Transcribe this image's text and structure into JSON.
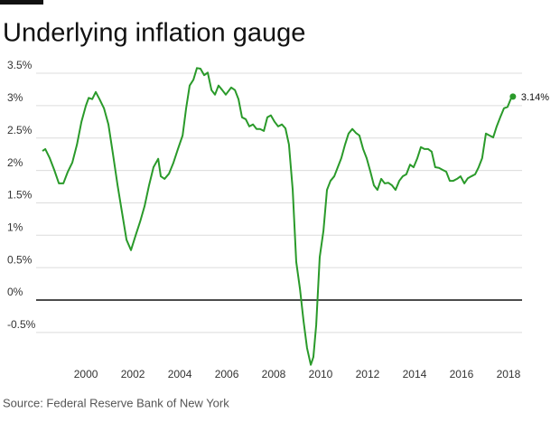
{
  "chart_data": {
    "type": "line",
    "title": "Underlying inflation gauge",
    "source": "Source: Federal Reserve Bank of New York",
    "x": [
      1998.15,
      1998.27,
      1998.46,
      1998.65,
      1998.85,
      1999.04,
      1999.23,
      1999.42,
      1999.62,
      1999.81,
      2000.0,
      2000.12,
      2000.27,
      2000.42,
      2000.58,
      2000.77,
      2000.96,
      2001.15,
      2001.35,
      2001.54,
      2001.73,
      2001.92,
      2002.12,
      2002.31,
      2002.5,
      2002.69,
      2002.88,
      2003.08,
      2003.19,
      2003.35,
      2003.54,
      2003.73,
      2003.92,
      2004.12,
      2004.27,
      2004.42,
      2004.58,
      2004.73,
      2004.88,
      2005.04,
      2005.19,
      2005.35,
      2005.5,
      2005.65,
      2005.81,
      2005.96,
      2006.19,
      2006.35,
      2006.5,
      2006.65,
      2006.81,
      2006.96,
      2007.12,
      2007.27,
      2007.42,
      2007.58,
      2007.73,
      2007.88,
      2008.04,
      2008.19,
      2008.35,
      2008.5,
      2008.65,
      2008.81,
      2008.96,
      2009.12,
      2009.27,
      2009.42,
      2009.58,
      2009.69,
      2009.81,
      2009.96,
      2010.12,
      2010.27,
      2010.42,
      2010.58,
      2010.73,
      2010.88,
      2011.04,
      2011.19,
      2011.35,
      2011.5,
      2011.65,
      2011.81,
      2011.96,
      2012.12,
      2012.27,
      2012.42,
      2012.58,
      2012.73,
      2012.88,
      2013.04,
      2013.19,
      2013.35,
      2013.5,
      2013.65,
      2013.81,
      2013.96,
      2014.12,
      2014.27,
      2014.42,
      2014.58,
      2014.73,
      2014.88,
      2015.04,
      2015.19,
      2015.35,
      2015.5,
      2015.65,
      2015.81,
      2015.96,
      2016.12,
      2016.27,
      2016.42,
      2016.58,
      2016.73,
      2016.88,
      2017.04,
      2017.19,
      2017.35,
      2017.5,
      2017.65,
      2017.81,
      2017.96,
      2018.12,
      2018.19
    ],
    "series": [
      {
        "color": "#2a9a2a",
        "values": [
          2.3,
          2.33,
          2.19,
          2.01,
          1.8,
          1.8,
          1.98,
          2.12,
          2.4,
          2.75,
          3.0,
          3.12,
          3.1,
          3.21,
          3.1,
          2.96,
          2.71,
          2.26,
          1.77,
          1.35,
          0.93,
          0.77,
          1.0,
          1.21,
          1.45,
          1.77,
          2.05,
          2.18,
          1.91,
          1.87,
          1.95,
          2.12,
          2.33,
          2.54,
          2.96,
          3.31,
          3.4,
          3.58,
          3.57,
          3.47,
          3.51,
          3.24,
          3.17,
          3.31,
          3.24,
          3.17,
          3.28,
          3.24,
          3.1,
          2.82,
          2.79,
          2.68,
          2.71,
          2.64,
          2.64,
          2.61,
          2.82,
          2.85,
          2.75,
          2.68,
          2.71,
          2.65,
          2.4,
          1.7,
          0.59,
          0.17,
          -0.32,
          -0.74,
          -1.0,
          -0.88,
          -0.39,
          0.66,
          1.07,
          1.7,
          1.84,
          1.91,
          2.05,
          2.19,
          2.4,
          2.57,
          2.64,
          2.58,
          2.54,
          2.33,
          2.19,
          1.98,
          1.77,
          1.7,
          1.87,
          1.8,
          1.81,
          1.77,
          1.7,
          1.84,
          1.91,
          1.94,
          2.09,
          2.05,
          2.19,
          2.36,
          2.33,
          2.33,
          2.29,
          2.05,
          2.04,
          2.01,
          1.98,
          1.84,
          1.84,
          1.87,
          1.91,
          1.8,
          1.88,
          1.91,
          1.94,
          2.05,
          2.19,
          2.57,
          2.54,
          2.51,
          2.68,
          2.82,
          2.96,
          2.98,
          3.12,
          3.14
        ]
      }
    ],
    "end_label": "3.14%",
    "xlim": [
      1997.88,
      2018.58
    ],
    "xticks": [
      2000,
      2002,
      2004,
      2006,
      2008,
      2010,
      2012,
      2014,
      2016,
      2018
    ],
    "ylim": [
      -1.0,
      3.7
    ],
    "yticks": [
      {
        "value": -0.5,
        "label": "-0.5%"
      },
      {
        "value": 0,
        "label": "0%"
      },
      {
        "value": 0.5,
        "label": "0.5%"
      },
      {
        "value": 1,
        "label": "1%"
      },
      {
        "value": 1.5,
        "label": "1.5%"
      },
      {
        "value": 2,
        "label": "2%"
      },
      {
        "value": 2.5,
        "label": "2.5%"
      },
      {
        "value": 3,
        "label": "3%"
      },
      {
        "value": 3.5,
        "label": "3.5%"
      }
    ],
    "grid": true,
    "zero_line": true
  }
}
